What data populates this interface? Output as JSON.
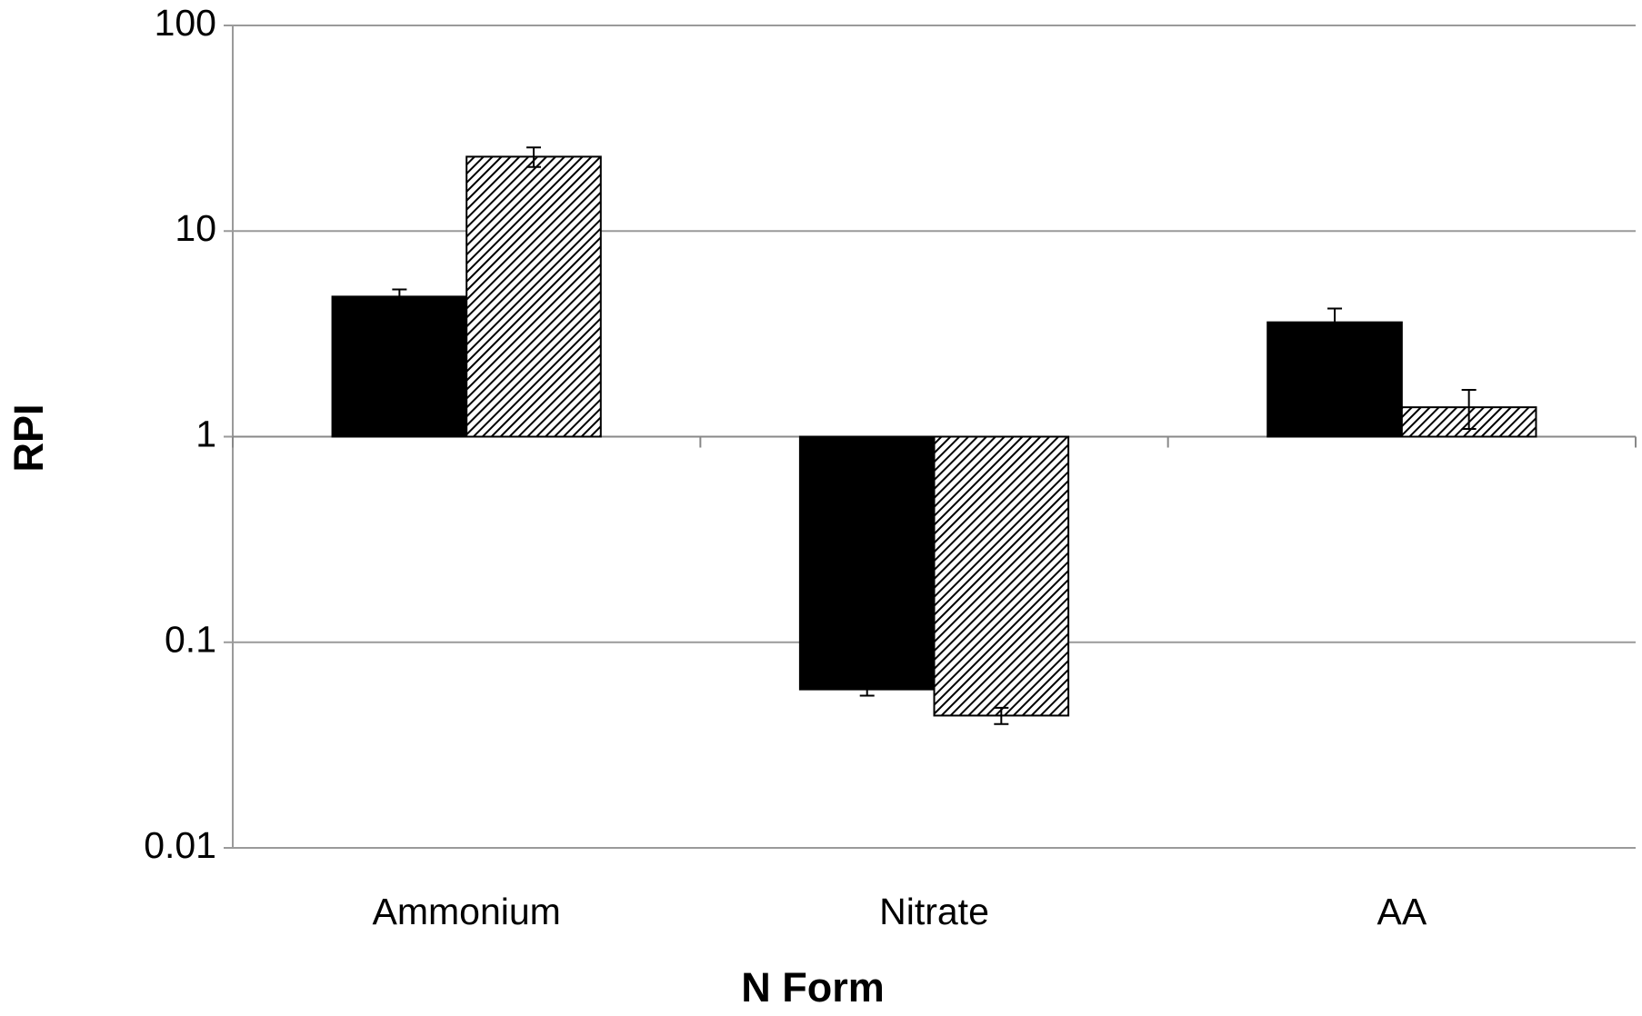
{
  "chart_data": {
    "type": "bar",
    "x_label": "N Form",
    "y_label": "RPI",
    "categories": [
      "Ammonium",
      "Nitrate",
      "AA"
    ],
    "series": [
      {
        "color": "#000000",
        "hatch": false,
        "values": [
          4.8,
          0.059,
          3.6
        ],
        "errors": [
          0.4,
          0.004,
          0.6
        ]
      },
      {
        "color": "#000000",
        "hatch": true,
        "values": [
          23,
          0.044,
          1.39
        ],
        "errors": [
          2.5,
          0.004,
          0.3
        ]
      }
    ],
    "log_scale": true,
    "baseline": 1,
    "ylim": [
      0.01,
      100
    ],
    "yticks": [
      0.01,
      0.1,
      1,
      10,
      100
    ],
    "grid": true
  }
}
